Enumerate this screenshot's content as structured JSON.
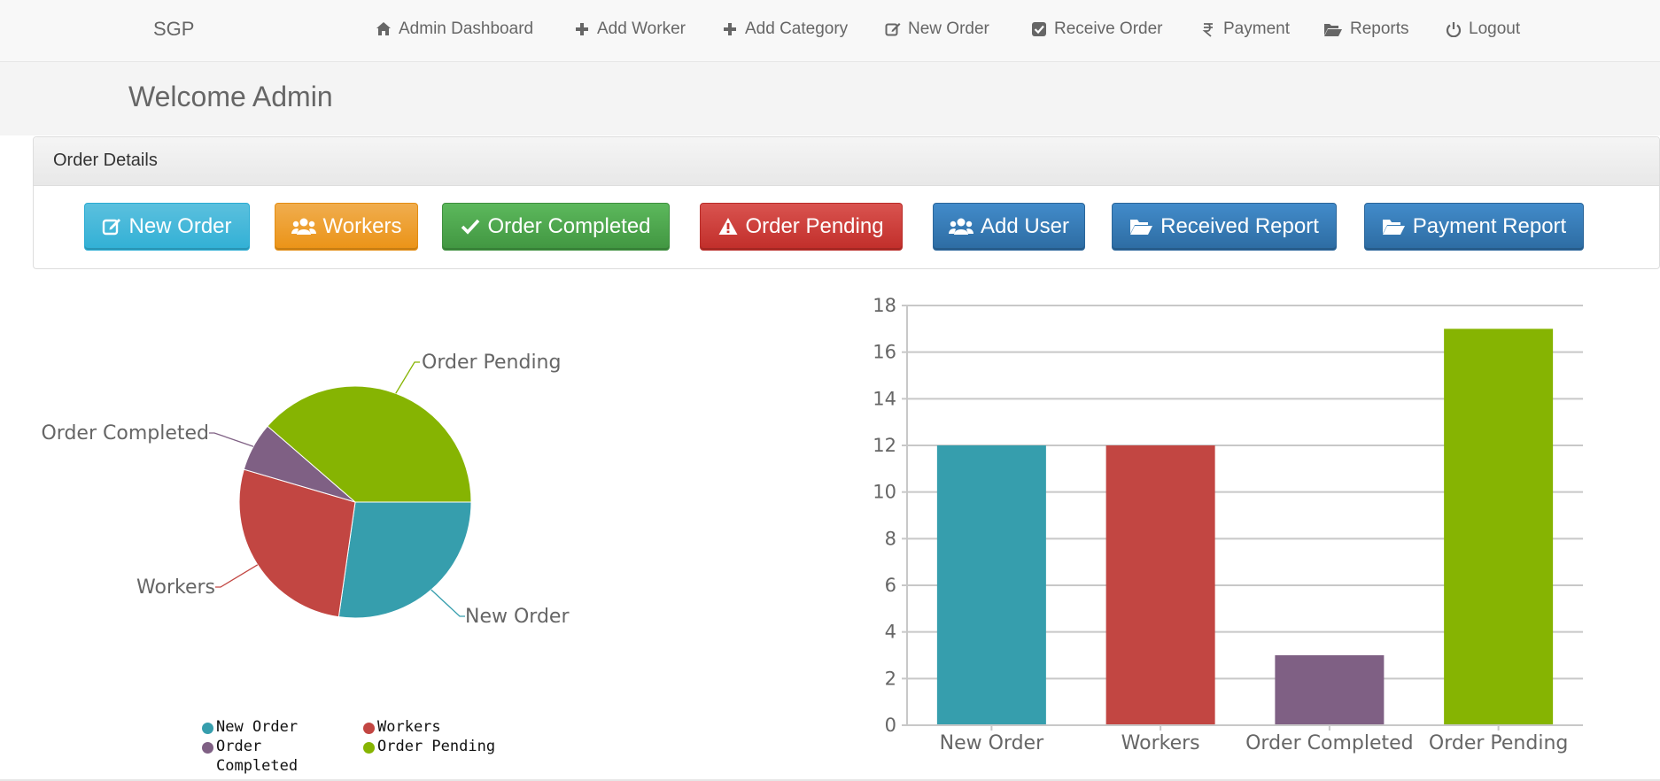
{
  "navbar": {
    "brand": "SGP",
    "items": [
      {
        "label": "Admin Dashboard",
        "icon": "home-icon"
      },
      {
        "label": "Add Worker",
        "icon": "plus-icon"
      },
      {
        "label": "Add Category",
        "icon": "plus-icon"
      },
      {
        "label": "New Order",
        "icon": "edit-icon"
      },
      {
        "label": "Receive Order",
        "icon": "check-square-icon"
      },
      {
        "label": "Payment",
        "icon": "rupee-icon"
      },
      {
        "label": "Reports",
        "icon": "folder-open-icon"
      },
      {
        "label": "Logout",
        "icon": "power-icon"
      }
    ]
  },
  "welcome": {
    "title": "Welcome Admin"
  },
  "panel": {
    "heading": "Order Details",
    "buttons": [
      {
        "label": "New Order",
        "icon": "edit-icon",
        "color": "#31b0d5"
      },
      {
        "label": "Workers",
        "icon": "users-icon",
        "color": "#eb9316"
      },
      {
        "label": "Order Completed",
        "icon": "check-icon",
        "color": "#419641"
      },
      {
        "label": "Order Pending",
        "icon": "warning-icon",
        "color": "#c12e2a"
      },
      {
        "label": "Add User",
        "icon": "users-icon",
        "color": "#2d6ca2"
      },
      {
        "label": "Received Report",
        "icon": "folder-open-icon",
        "color": "#2d6ca2"
      },
      {
        "label": "Payment Report",
        "icon": "folder-open-icon",
        "color": "#2d6ca2"
      }
    ]
  },
  "chart_data": [
    {
      "type": "pie",
      "categories": [
        "New Order",
        "Workers",
        "Order Completed",
        "Order Pending"
      ],
      "values": [
        12,
        12,
        3,
        17
      ],
      "colors": [
        "#369EAD",
        "#C24642",
        "#7F6084",
        "#86B402"
      ],
      "legend": {
        "placement": "bottom",
        "entries": [
          "New Order",
          "Workers",
          "Order Completed",
          "Order Pending"
        ]
      }
    },
    {
      "type": "bar",
      "categories": [
        "New Order",
        "Workers",
        "Order Completed",
        "Order Pending"
      ],
      "values": [
        12,
        12,
        3,
        17
      ],
      "colors": [
        "#369EAD",
        "#C24642",
        "#7F6084",
        "#86B402"
      ],
      "ylim": [
        0,
        18
      ],
      "yticks": [
        0,
        2,
        4,
        6,
        8,
        10,
        12,
        14,
        16,
        18
      ],
      "grid": true
    }
  ]
}
